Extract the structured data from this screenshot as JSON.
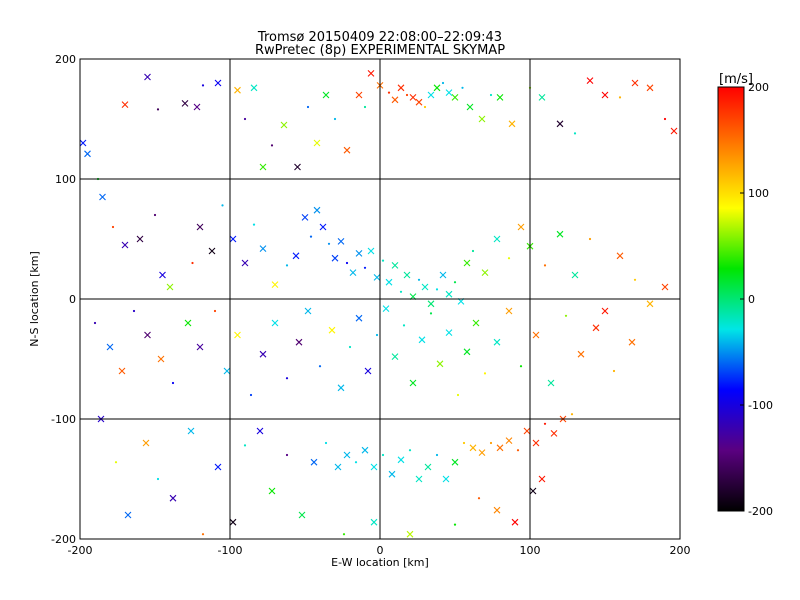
{
  "chart_data": {
    "type": "scatter",
    "title": "Tromsø 20150409 22:08:00–22:09:43",
    "subtitle": "RwPretec (8p) EXPERIMENTAL SKYMAP",
    "xlabel": "E-W location [km]",
    "ylabel": "N-S location [km]",
    "xlim": [
      -200,
      200
    ],
    "ylim": [
      -200,
      200
    ],
    "xticks": [
      -200,
      -100,
      0,
      100,
      200
    ],
    "yticks": [
      -200,
      -100,
      0,
      100,
      200
    ],
    "grid": true,
    "colorbar": {
      "label": "[m/s]",
      "range": [
        -200,
        200
      ],
      "ticks": [
        -200,
        -100,
        0,
        100,
        200
      ],
      "colormap": "rainbow",
      "stops": [
        "#000000",
        "#5a0080",
        "#0000ff",
        "#00e6e6",
        "#00e600",
        "#ffff00",
        "#ff8000",
        "#ff0000"
      ]
    },
    "markers": [
      "cross",
      "dot"
    ],
    "series": [
      {
        "points": [
          [
            -198,
            130,
            -80
          ],
          [
            -195,
            121,
            -60
          ],
          [
            -188,
            100,
            20
          ],
          [
            -170,
            162,
            180
          ],
          [
            -155,
            185,
            -120
          ],
          [
            -148,
            158,
            -160
          ],
          [
            -130,
            163,
            -170
          ],
          [
            -122,
            160,
            -140
          ],
          [
            -118,
            178,
            -100
          ],
          [
            -108,
            180,
            -90
          ],
          [
            -95,
            174,
            120
          ],
          [
            -90,
            150,
            -130
          ],
          [
            -84,
            176,
            -20
          ],
          [
            -78,
            110,
            40
          ],
          [
            -72,
            128,
            -150
          ],
          [
            -64,
            145,
            60
          ],
          [
            -55,
            110,
            -180
          ],
          [
            -48,
            160,
            -60
          ],
          [
            -42,
            130,
            80
          ],
          [
            -36,
            170,
            20
          ],
          [
            -30,
            150,
            -40
          ],
          [
            -22,
            124,
            160
          ],
          [
            -14,
            170,
            170
          ],
          [
            -10,
            160,
            -10
          ],
          [
            -6,
            188,
            190
          ],
          [
            0,
            178,
            150
          ],
          [
            6,
            172,
            180
          ],
          [
            10,
            166,
            160
          ],
          [
            14,
            176,
            180
          ],
          [
            18,
            170,
            170
          ],
          [
            22,
            168,
            180
          ],
          [
            26,
            164,
            170
          ],
          [
            30,
            160,
            110
          ],
          [
            34,
            170,
            -30
          ],
          [
            38,
            176,
            30
          ],
          [
            42,
            180,
            -40
          ],
          [
            46,
            172,
            -30
          ],
          [
            50,
            168,
            40
          ],
          [
            55,
            176,
            -40
          ],
          [
            60,
            160,
            20
          ],
          [
            68,
            150,
            60
          ],
          [
            74,
            170,
            -20
          ],
          [
            80,
            168,
            30
          ],
          [
            88,
            146,
            120
          ],
          [
            100,
            176,
            60
          ],
          [
            108,
            168,
            -10
          ],
          [
            120,
            146,
            -180
          ],
          [
            130,
            138,
            -20
          ],
          [
            140,
            182,
            200
          ],
          [
            150,
            170,
            200
          ],
          [
            160,
            168,
            120
          ],
          [
            170,
            180,
            180
          ],
          [
            180,
            176,
            170
          ],
          [
            190,
            150,
            200
          ],
          [
            196,
            140,
            190
          ],
          [
            -185,
            85,
            -60
          ],
          [
            -178,
            60,
            170
          ],
          [
            -170,
            45,
            -120
          ],
          [
            -160,
            50,
            -170
          ],
          [
            -150,
            70,
            -150
          ],
          [
            -145,
            20,
            -100
          ],
          [
            -140,
            10,
            60
          ],
          [
            -125,
            30,
            180
          ],
          [
            -120,
            60,
            -160
          ],
          [
            -112,
            40,
            -190
          ],
          [
            -105,
            78,
            -40
          ],
          [
            -98,
            50,
            -80
          ],
          [
            -90,
            30,
            -120
          ],
          [
            -84,
            62,
            -30
          ],
          [
            -78,
            42,
            -50
          ],
          [
            -70,
            12,
            90
          ],
          [
            -62,
            28,
            -40
          ],
          [
            -56,
            36,
            -80
          ],
          [
            -50,
            68,
            -70
          ],
          [
            -46,
            52,
            -60
          ],
          [
            -42,
            74,
            -50
          ],
          [
            -38,
            60,
            -80
          ],
          [
            -34,
            46,
            -50
          ],
          [
            -30,
            34,
            -70
          ],
          [
            -26,
            48,
            -60
          ],
          [
            -22,
            30,
            -90
          ],
          [
            -18,
            22,
            -40
          ],
          [
            -14,
            38,
            -50
          ],
          [
            -10,
            26,
            -80
          ],
          [
            -6,
            40,
            -30
          ],
          [
            -2,
            18,
            -40
          ],
          [
            2,
            32,
            -20
          ],
          [
            6,
            14,
            -30
          ],
          [
            10,
            28,
            -10
          ],
          [
            14,
            6,
            -20
          ],
          [
            18,
            20,
            -10
          ],
          [
            22,
            2,
            10
          ],
          [
            26,
            16,
            -40
          ],
          [
            30,
            10,
            -20
          ],
          [
            34,
            -4,
            0
          ],
          [
            38,
            8,
            -30
          ],
          [
            42,
            20,
            -40
          ],
          [
            46,
            4,
            -20
          ],
          [
            50,
            14,
            10
          ],
          [
            54,
            -2,
            -30
          ],
          [
            58,
            30,
            40
          ],
          [
            62,
            40,
            -10
          ],
          [
            70,
            22,
            60
          ],
          [
            78,
            50,
            -20
          ],
          [
            86,
            34,
            80
          ],
          [
            94,
            60,
            130
          ],
          [
            100,
            44,
            40
          ],
          [
            110,
            28,
            150
          ],
          [
            120,
            54,
            20
          ],
          [
            130,
            20,
            -10
          ],
          [
            140,
            50,
            130
          ],
          [
            150,
            -10,
            190
          ],
          [
            160,
            36,
            160
          ],
          [
            170,
            16,
            110
          ],
          [
            180,
            -4,
            120
          ],
          [
            190,
            10,
            170
          ],
          [
            -190,
            -20,
            -120
          ],
          [
            -180,
            -40,
            -60
          ],
          [
            -172,
            -60,
            160
          ],
          [
            -164,
            -10,
            -110
          ],
          [
            -155,
            -30,
            -150
          ],
          [
            -146,
            -50,
            150
          ],
          [
            -138,
            -70,
            -90
          ],
          [
            -128,
            -20,
            30
          ],
          [
            -120,
            -40,
            -130
          ],
          [
            -110,
            -10,
            170
          ],
          [
            -102,
            -60,
            -40
          ],
          [
            -95,
            -30,
            90
          ],
          [
            -86,
            -80,
            -70
          ],
          [
            -78,
            -46,
            -120
          ],
          [
            -70,
            -20,
            -30
          ],
          [
            -62,
            -66,
            -100
          ],
          [
            -54,
            -36,
            -150
          ],
          [
            -48,
            -10,
            -40
          ],
          [
            -40,
            -56,
            -60
          ],
          [
            -32,
            -26,
            90
          ],
          [
            -26,
            -74,
            -40
          ],
          [
            -20,
            -40,
            -20
          ],
          [
            -14,
            -16,
            -60
          ],
          [
            -8,
            -60,
            -100
          ],
          [
            -2,
            -30,
            -40
          ],
          [
            4,
            -8,
            -30
          ],
          [
            10,
            -48,
            -10
          ],
          [
            16,
            -22,
            -20
          ],
          [
            22,
            -70,
            20
          ],
          [
            28,
            -34,
            -30
          ],
          [
            34,
            -12,
            10
          ],
          [
            40,
            -54,
            60
          ],
          [
            46,
            -28,
            -30
          ],
          [
            52,
            -80,
            80
          ],
          [
            58,
            -44,
            20
          ],
          [
            64,
            -20,
            40
          ],
          [
            70,
            -62,
            90
          ],
          [
            78,
            -36,
            -20
          ],
          [
            86,
            -10,
            130
          ],
          [
            94,
            -56,
            30
          ],
          [
            104,
            -30,
            150
          ],
          [
            114,
            -70,
            -10
          ],
          [
            124,
            -14,
            60
          ],
          [
            134,
            -46,
            150
          ],
          [
            144,
            -24,
            180
          ],
          [
            156,
            -60,
            120
          ],
          [
            168,
            -36,
            150
          ],
          [
            -186,
            -100,
            -110
          ],
          [
            -176,
            -136,
            80
          ],
          [
            -168,
            -180,
            -60
          ],
          [
            -156,
            -120,
            130
          ],
          [
            -148,
            -150,
            -30
          ],
          [
            -138,
            -166,
            -120
          ],
          [
            -126,
            -110,
            -40
          ],
          [
            -118,
            -196,
            150
          ],
          [
            -108,
            -140,
            -80
          ],
          [
            -98,
            -186,
            -190
          ],
          [
            -90,
            -122,
            -20
          ],
          [
            -80,
            -110,
            -100
          ],
          [
            -72,
            -160,
            30
          ],
          [
            -62,
            -130,
            -140
          ],
          [
            -52,
            -180,
            10
          ],
          [
            -44,
            -136,
            -60
          ],
          [
            -36,
            -120,
            -30
          ],
          [
            -28,
            -140,
            -40
          ],
          [
            -22,
            -130,
            -40
          ],
          [
            -16,
            -136,
            -30
          ],
          [
            -10,
            -126,
            -40
          ],
          [
            -4,
            -140,
            -30
          ],
          [
            2,
            -130,
            -20
          ],
          [
            8,
            -146,
            -40
          ],
          [
            14,
            -134,
            -30
          ],
          [
            20,
            -126,
            -20
          ],
          [
            26,
            -150,
            -20
          ],
          [
            32,
            -140,
            -10
          ],
          [
            38,
            -130,
            -40
          ],
          [
            44,
            -150,
            -30
          ],
          [
            50,
            -136,
            20
          ],
          [
            56,
            -120,
            110
          ],
          [
            62,
            -124,
            120
          ],
          [
            68,
            -128,
            130
          ],
          [
            74,
            -120,
            130
          ],
          [
            80,
            -124,
            150
          ],
          [
            86,
            -118,
            140
          ],
          [
            92,
            -126,
            160
          ],
          [
            98,
            -110,
            170
          ],
          [
            104,
            -120,
            180
          ],
          [
            110,
            -104,
            190
          ],
          [
            116,
            -112,
            180
          ],
          [
            122,
            -100,
            170
          ],
          [
            128,
            -96,
            120
          ],
          [
            102,
            -160,
            -190
          ],
          [
            108,
            -150,
            190
          ],
          [
            66,
            -166,
            160
          ],
          [
            78,
            -176,
            140
          ],
          [
            90,
            -186,
            200
          ],
          [
            50,
            -188,
            30
          ],
          [
            20,
            -196,
            70
          ],
          [
            -4,
            -186,
            -20
          ],
          [
            -24,
            -196,
            40
          ]
        ]
      }
    ]
  }
}
